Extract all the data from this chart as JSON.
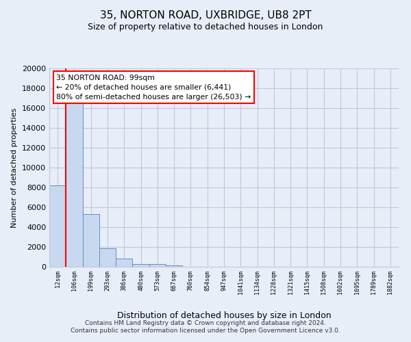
{
  "title": "35, NORTON ROAD, UXBRIDGE, UB8 2PT",
  "subtitle": "Size of property relative to detached houses in London",
  "xlabel": "Distribution of detached houses by size in London",
  "ylabel": "Number of detached properties",
  "bar_categories": [
    "12sqm",
    "106sqm",
    "199sqm",
    "293sqm",
    "386sqm",
    "480sqm",
    "573sqm",
    "667sqm",
    "760sqm",
    "854sqm",
    "947sqm",
    "1041sqm",
    "1134sqm",
    "1228sqm",
    "1321sqm",
    "1415sqm",
    "1508sqm",
    "1602sqm",
    "1695sqm",
    "1789sqm",
    "1882sqm"
  ],
  "bar_values": [
    8200,
    16600,
    5300,
    1850,
    800,
    300,
    300,
    150,
    0,
    0,
    0,
    0,
    0,
    0,
    0,
    0,
    0,
    0,
    0,
    0,
    0
  ],
  "bar_color": "#c8d8f0",
  "bar_edge_color": "#6090c0",
  "vline_color": "red",
  "vline_x": 1,
  "ylim": [
    0,
    20000
  ],
  "yticks": [
    0,
    2000,
    4000,
    6000,
    8000,
    10000,
    12000,
    14000,
    16000,
    18000,
    20000
  ],
  "annotation_title": "35 NORTON ROAD: 99sqm",
  "annotation_line1": "← 20% of detached houses are smaller (6,441)",
  "annotation_line2": "80% of semi-detached houses are larger (26,503) →",
  "annotation_box_facecolor": "white",
  "annotation_box_edgecolor": "red",
  "footer_line1": "Contains HM Land Registry data © Crown copyright and database right 2024.",
  "footer_line2": "Contains public sector information licensed under the Open Government Licence v3.0.",
  "bg_color": "#e8eef8",
  "plot_bg_color": "#e8eef8",
  "grid_color": "#c0c8d8"
}
